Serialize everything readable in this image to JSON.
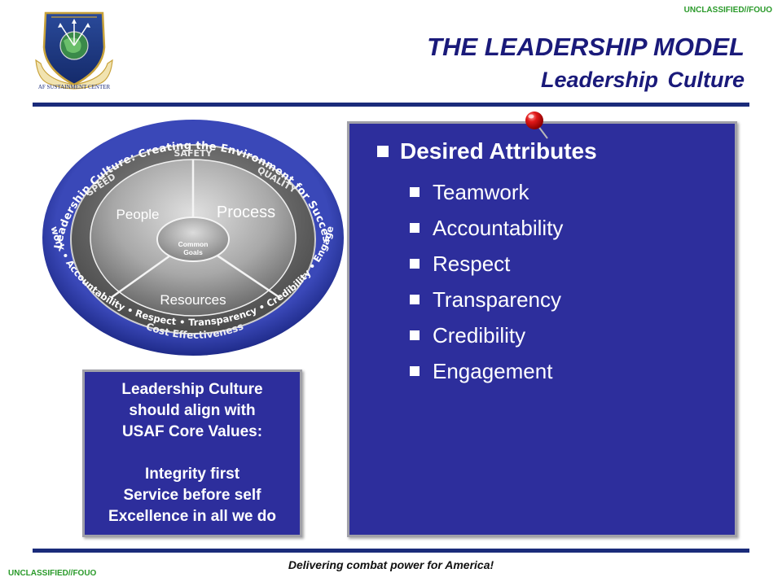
{
  "classification": {
    "top": "UNCLASSIFIED//FOUO",
    "bottom": "UNCLASSIFIED//FOUO"
  },
  "logo": {
    "text": "AF SUSTAINMENT CENTER",
    "icon": "shield-globe-emblem"
  },
  "header": {
    "title": "THE LEADERSHIP MODEL",
    "subtitle": "Leadership Culture"
  },
  "wheel": {
    "outer_arc_text": "Leadership Culture: Creating the Environment for Success",
    "bottom_arc_text": "Teamwork • Accountability • Respect • Transparency • Credibility • Engagement",
    "ring_labels": {
      "safety": "SAFETY",
      "speed": "SPEED",
      "quality": "QUALITY",
      "cost": "Cost Effectiveness"
    },
    "sectors": {
      "people": "People",
      "process": "Process",
      "resources": "Resources"
    },
    "center": {
      "line1": "Common",
      "line2": "Goals"
    }
  },
  "values_box": {
    "line1": "Leadership Culture",
    "line2": "should align with",
    "line3": "USAF Core Values:",
    "value1": "Integrity first",
    "value2": "Service before self",
    "value3": "Excellence in all we do"
  },
  "attributes": {
    "heading": "Desired Attributes",
    "items": [
      "Teamwork",
      "Accountability",
      "Respect",
      "Transparency",
      "Credibility",
      "Engagement"
    ]
  },
  "footer": {
    "tagline": "Delivering combat power for America!"
  },
  "colors": {
    "navy": "#1a2b7a",
    "panel": "#2d2e9c",
    "classification": "#2a9a2a",
    "title": "#1a1a7a"
  }
}
